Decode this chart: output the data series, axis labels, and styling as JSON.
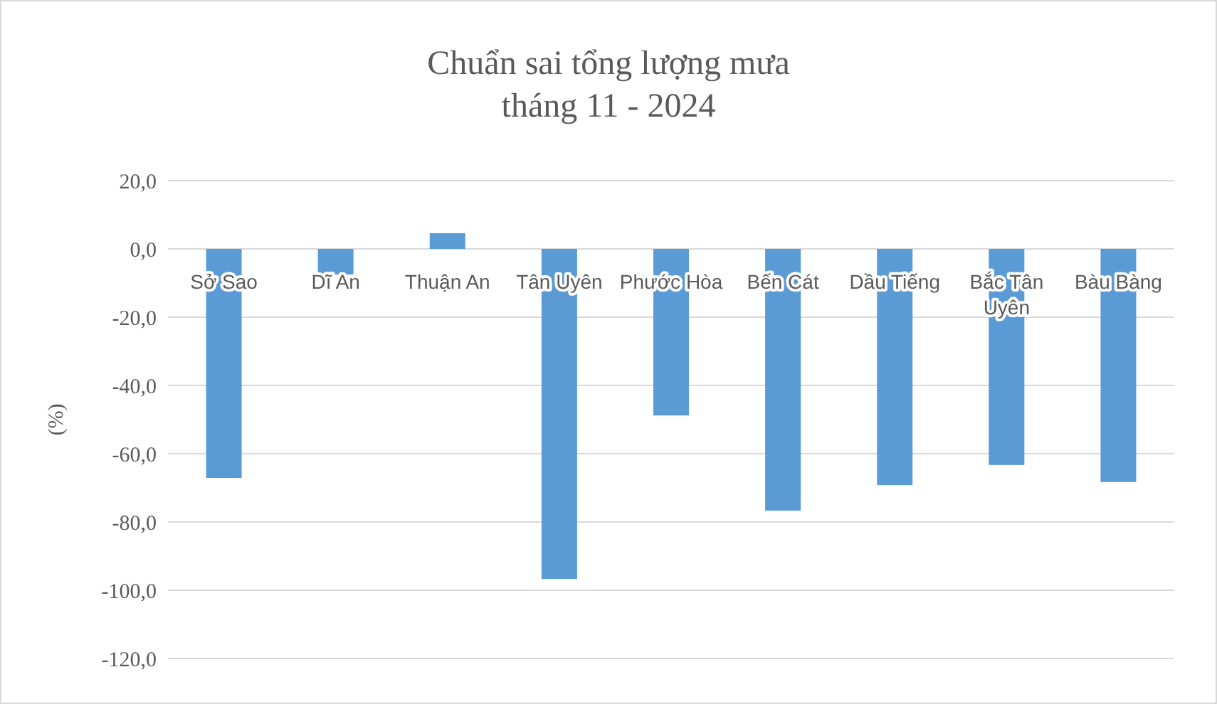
{
  "chart_data": {
    "type": "bar",
    "title": "Chuẩn sai tổng lượng mưa\ntháng 11 - 2024",
    "ylabel": "(%)",
    "categories": [
      "Sở Sao",
      "Dĩ An",
      "Thuận An",
      "Tân Uyên",
      "Phước Hòa",
      "Bến Cát",
      "Dầu Tiếng",
      "Bắc Tân Uyên",
      "Bàu Bàng"
    ],
    "values": [
      -67.1,
      -7.5,
      4.6,
      -96.7,
      -48.8,
      -76.7,
      -69.2,
      -63.3,
      -68.3
    ],
    "color": "#5b9bd5",
    "ylim": [
      -120,
      20
    ],
    "yticks": [
      {
        "value": -120,
        "label": "-120,0"
      },
      {
        "value": -100,
        "label": "-100,0"
      },
      {
        "value": -80,
        "label": "-80,0"
      },
      {
        "value": -60,
        "label": "-60,0"
      },
      {
        "value": -40,
        "label": "-40,0"
      },
      {
        "value": -20,
        "label": "-20,0"
      },
      {
        "value": 0,
        "label": "0,0"
      },
      {
        "value": 20,
        "label": "20,0"
      }
    ],
    "grid": "y"
  }
}
